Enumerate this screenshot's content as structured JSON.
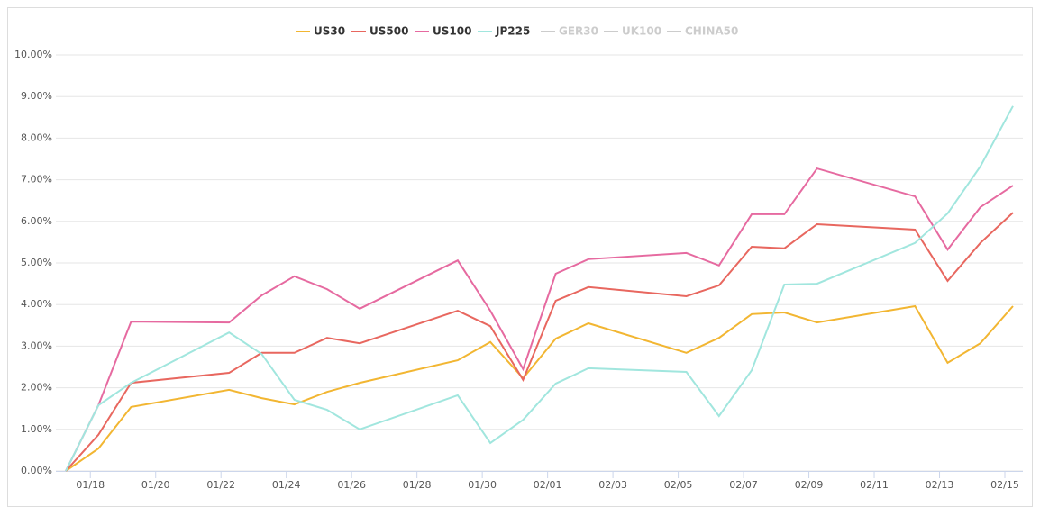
{
  "chart_data": {
    "type": "line",
    "x": [
      "01/17",
      "01/18",
      "01/19",
      "01/22",
      "01/23",
      "01/24",
      "01/25",
      "01/26",
      "01/29",
      "01/30",
      "01/31",
      "02/01",
      "02/02",
      "02/05",
      "02/06",
      "02/07",
      "02/08",
      "02/09",
      "02/12",
      "02/13",
      "02/14",
      "02/15"
    ],
    "series": [
      {
        "name": "US30",
        "color": "#f2b632",
        "values": [
          0,
          0.54,
          1.54,
          1.95,
          1.75,
          1.6,
          1.9,
          2.12,
          2.66,
          3.1,
          2.23,
          3.18,
          3.55,
          2.84,
          3.2,
          3.77,
          3.81,
          3.57,
          3.96,
          2.6,
          3.07,
          3.96
        ]
      },
      {
        "name": "US500",
        "color": "#e8675f",
        "values": [
          0,
          0.87,
          2.12,
          2.36,
          2.84,
          2.84,
          3.2,
          3.07,
          3.85,
          3.48,
          2.19,
          4.09,
          4.42,
          4.2,
          4.46,
          5.39,
          5.35,
          5.93,
          5.8,
          4.57,
          5.48,
          6.21
        ]
      },
      {
        "name": "US100",
        "color": "#e66aa0",
        "values": [
          0,
          1.58,
          3.59,
          3.57,
          4.22,
          4.68,
          4.37,
          3.9,
          5.06,
          3.85,
          2.45,
          4.74,
          5.09,
          5.24,
          4.94,
          6.17,
          6.17,
          7.27,
          6.6,
          5.32,
          6.34,
          6.86
        ]
      },
      {
        "name": "JP225",
        "color": "#a1e6de",
        "values": [
          0,
          1.58,
          2.12,
          3.33,
          2.81,
          1.71,
          1.47,
          1.0,
          1.82,
          0.67,
          1.23,
          2.1,
          2.47,
          2.38,
          1.32,
          2.42,
          4.48,
          4.5,
          5.48,
          6.19,
          7.32,
          8.77
        ]
      },
      {
        "name": "GER30",
        "color": "#cccccc",
        "hidden": true
      },
      {
        "name": "UK100",
        "color": "#cccccc",
        "hidden": true
      },
      {
        "name": "CHINA50",
        "color": "#cccccc",
        "hidden": true
      }
    ],
    "xticks": [
      "01/18",
      "01/20",
      "01/22",
      "01/24",
      "01/26",
      "01/28",
      "01/30",
      "02/01",
      "02/03",
      "02/05",
      "02/07",
      "02/09",
      "02/11",
      "02/13",
      "02/15"
    ],
    "ylim": [
      0,
      10
    ],
    "yticks": [
      {
        "value": 0,
        "label": "0.00%"
      },
      {
        "value": 1,
        "label": "1.00%"
      },
      {
        "value": 2,
        "label": "2.00%"
      },
      {
        "value": 3,
        "label": "3.00%"
      },
      {
        "value": 4,
        "label": "4.00%"
      },
      {
        "value": 5,
        "label": "5.00%"
      },
      {
        "value": 6,
        "label": "6.00%"
      },
      {
        "value": 7,
        "label": "7.00%"
      },
      {
        "value": 8,
        "label": "8.00%"
      },
      {
        "value": 9,
        "label": "9.00%"
      },
      {
        "value": 10,
        "label": "10.00%"
      }
    ],
    "grid": true,
    "legend": "top"
  }
}
